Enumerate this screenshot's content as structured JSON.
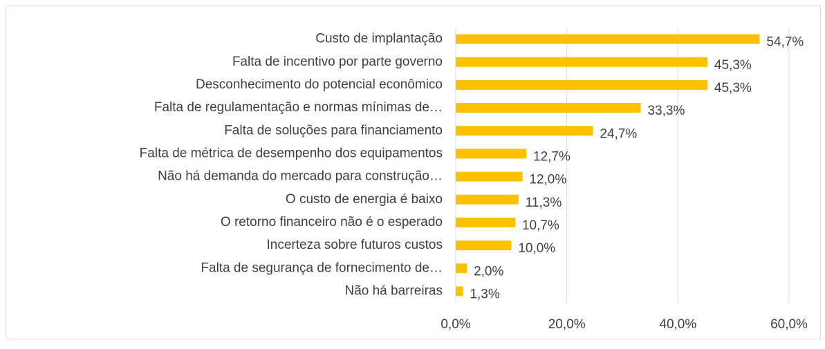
{
  "chart_data": {
    "type": "bar",
    "orientation": "horizontal",
    "categories": [
      "Custo de implantação",
      "Falta de incentivo por parte governo",
      "Desconhecimento do potencial econômico",
      "Falta de regulamentação e normas mínimas de…",
      "Falta de soluções para financiamento",
      "Falta de métrica de desempenho dos equipamentos",
      "Não há demanda do mercado para construção…",
      "O custo de energia é baixo",
      "O retorno financeiro não é o esperado",
      "Incerteza sobre futuros custos",
      "Falta de segurança de fornecimento de…",
      "Não há barreiras"
    ],
    "values": [
      54.7,
      45.3,
      45.3,
      33.3,
      24.7,
      12.7,
      12.0,
      11.3,
      10.7,
      10.0,
      2.0,
      1.3
    ],
    "value_labels": [
      "54,7%",
      "45,3%",
      "45,3%",
      "33,3%",
      "24,7%",
      "12,7%",
      "12,0%",
      "11,3%",
      "10,7%",
      "10,0%",
      "2,0%",
      "1,3%"
    ],
    "color": "#ffc000",
    "xlim": [
      0,
      60
    ],
    "xticks": [
      {
        "value": 0,
        "label": "0,0%"
      },
      {
        "value": 20,
        "label": "20,0%"
      },
      {
        "value": 40,
        "label": "40,0%"
      },
      {
        "value": 60,
        "label": "60,0%"
      }
    ],
    "grid": true
  }
}
